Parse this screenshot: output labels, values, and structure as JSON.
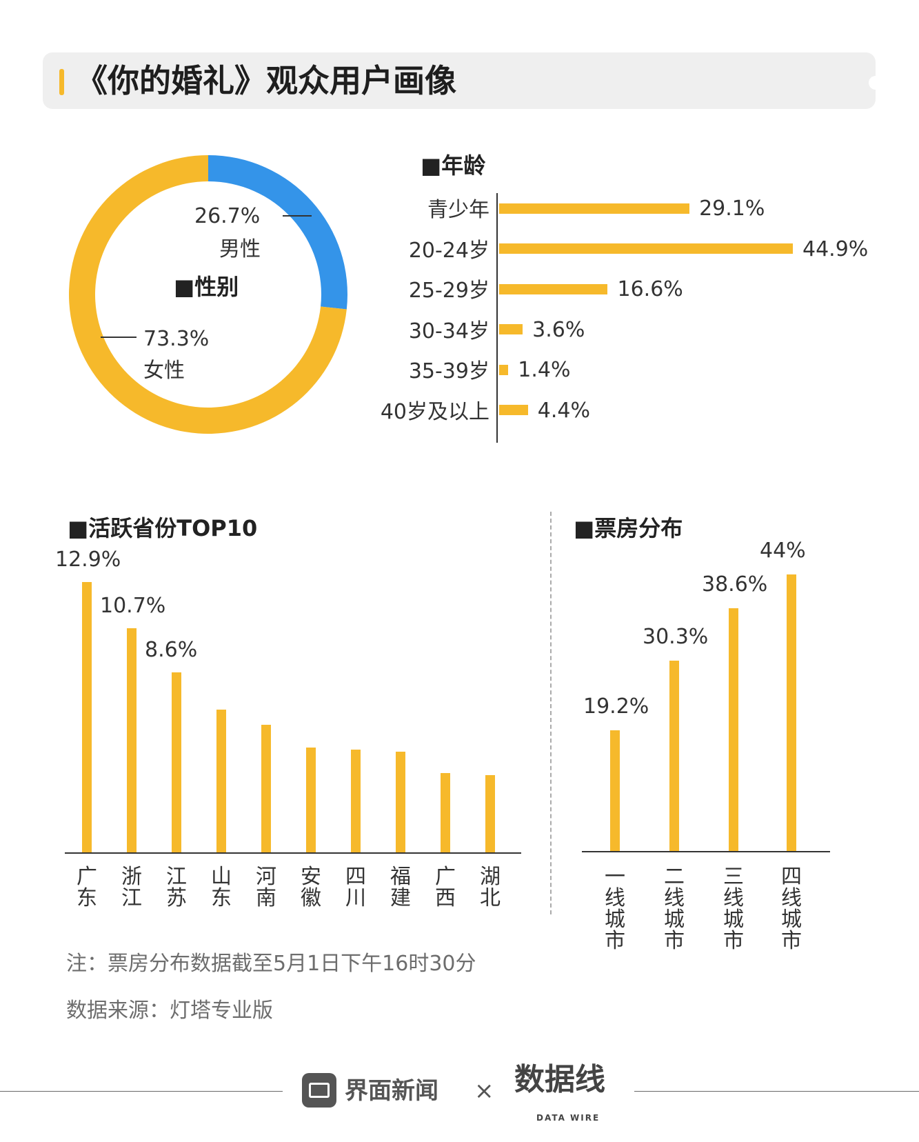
{
  "title": "《你的婚礼》观众用户画像",
  "colors": {
    "accent": "#f6b92b",
    "male": "#3494e9",
    "female": "#f6b92b"
  },
  "gender": {
    "heading": "■性别",
    "male": {
      "value": "26.7%",
      "label": "男性",
      "share": 26.7
    },
    "female": {
      "value": "73.3%",
      "label": "女性",
      "share": 73.3
    }
  },
  "age": {
    "heading": "■年龄",
    "rows": [
      {
        "label": "青少年",
        "value": 29.1,
        "text": "29.1%"
      },
      {
        "label": "20-24岁",
        "value": 44.9,
        "text": "44.9%"
      },
      {
        "label": "25-29岁",
        "value": 16.6,
        "text": "16.6%"
      },
      {
        "label": "30-34岁",
        "value": 3.6,
        "text": "3.6%"
      },
      {
        "label": "35-39岁",
        "value": 1.4,
        "text": "1.4%"
      },
      {
        "label": "40岁及以上",
        "value": 4.4,
        "text": "4.4%"
      }
    ]
  },
  "provinces": {
    "heading": "■活跃省份TOP10",
    "rows": [
      {
        "name": "广东",
        "value": 12.9,
        "text": "12.9%"
      },
      {
        "name": "浙江",
        "value": 10.7,
        "text": "10.7%"
      },
      {
        "name": "江苏",
        "value": 8.6,
        "text": "8.6%"
      },
      {
        "name": "山东",
        "value": 6.8,
        "text": ""
      },
      {
        "name": "河南",
        "value": 6.1,
        "text": ""
      },
      {
        "name": "安徽",
        "value": 5.0,
        "text": ""
      },
      {
        "name": "四川",
        "value": 4.9,
        "text": ""
      },
      {
        "name": "福建",
        "value": 4.8,
        "text": ""
      },
      {
        "name": "广西",
        "value": 3.8,
        "text": ""
      },
      {
        "name": "湖北",
        "value": 3.7,
        "text": ""
      }
    ]
  },
  "boxoffice": {
    "heading": "■票房分布",
    "rows": [
      {
        "name": "一线城市",
        "value": 19.2,
        "text": "19.2%"
      },
      {
        "name": "二线城市",
        "value": 30.3,
        "text": "30.3%"
      },
      {
        "name": "三线城市",
        "value": 38.6,
        "text": "38.6%"
      },
      {
        "name": "四线城市",
        "value": 44,
        "text": "44%"
      }
    ]
  },
  "notes": {
    "note": "注：票房分布数据截至5月1日下午16时30分",
    "source": "数据来源：灯塔专业版"
  },
  "footer": {
    "brand1": "界面新闻",
    "separator": "×",
    "brand2": "数据线",
    "brand2_sub": "DATA WIRE"
  },
  "chart_data": [
    {
      "type": "pie",
      "title": "性别",
      "categories": [
        "男性",
        "女性"
      ],
      "values": [
        26.7,
        73.3
      ]
    },
    {
      "type": "bar",
      "orientation": "horizontal",
      "title": "年龄",
      "categories": [
        "青少年",
        "20-24岁",
        "25-29岁",
        "30-34岁",
        "35-39岁",
        "40岁及以上"
      ],
      "values": [
        29.1,
        44.9,
        16.6,
        3.6,
        1.4,
        4.4
      ]
    },
    {
      "type": "bar",
      "title": "活跃省份TOP10",
      "categories": [
        "广东",
        "浙江",
        "江苏",
        "山东",
        "河南",
        "安徽",
        "四川",
        "福建",
        "广西",
        "湖北"
      ],
      "values": [
        12.9,
        10.7,
        8.6,
        6.8,
        6.1,
        5.0,
        4.9,
        4.8,
        3.8,
        3.7
      ]
    },
    {
      "type": "bar",
      "title": "票房分布",
      "categories": [
        "一线城市",
        "二线城市",
        "三线城市",
        "四线城市"
      ],
      "values": [
        19.2,
        30.3,
        38.6,
        44
      ]
    }
  ]
}
